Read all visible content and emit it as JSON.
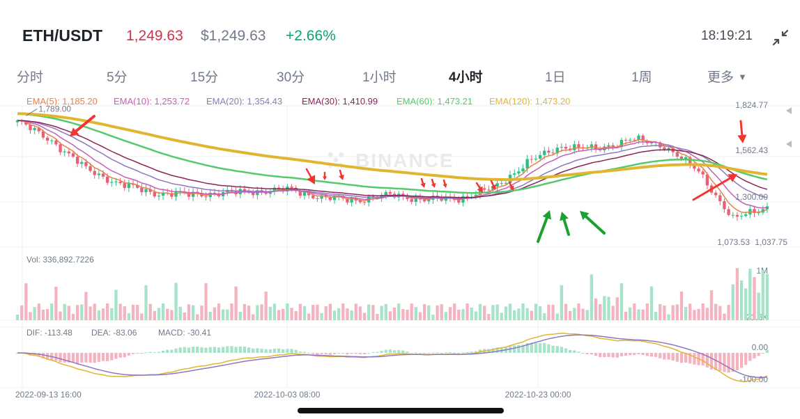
{
  "header": {
    "pair": "ETH/USDT",
    "last_price": "1,249.63",
    "usd_price": "$1,249.63",
    "change_pct": "+2.66%",
    "time": "18:19:21"
  },
  "tabs": [
    {
      "label": "分时",
      "active": false
    },
    {
      "label": "5分",
      "active": false
    },
    {
      "label": "15分",
      "active": false
    },
    {
      "label": "30分",
      "active": false
    },
    {
      "label": "1小时",
      "active": false
    },
    {
      "label": "4小时",
      "active": true
    },
    {
      "label": "1日",
      "active": false
    },
    {
      "label": "1周",
      "active": false
    },
    {
      "label": "更多",
      "active": false
    }
  ],
  "ema_legend": [
    {
      "label": "EMA(5): 1,185.20",
      "color": "#e8804a"
    },
    {
      "label": "EMA(10): 1,253.72",
      "color": "#c45fb4"
    },
    {
      "label": "EMA(20): 1,354.43",
      "color": "#8f77bf"
    },
    {
      "label": "EMA(30): 1,410.99",
      "color": "#8b2356"
    },
    {
      "label": "EMA(60): 1,473.21",
      "color": "#55c96b"
    },
    {
      "label": "EMA(120): 1,473.20",
      "color": "#e0b530"
    }
  ],
  "colors": {
    "up": "#2ebd85",
    "down": "#e95f77",
    "arrow_red": "#f0362f",
    "arrow_green": "#1aa12f"
  },
  "watermark": "BINANCE",
  "chart_data": {
    "type": "candlestick",
    "interval": "4小时",
    "price_axis_labels": [
      "1,824.77",
      "1,562.43",
      "1,300.00",
      "1,073.53",
      "1,037.75"
    ],
    "annotations": {
      "period_high": "1,789.00"
    },
    "x_tick_labels": [
      "2022-09-13 16:00",
      "2022-10-03 08:00",
      "2022-10-23 00:00"
    ],
    "price_series_approx": [
      {
        "x": "2022-09-13 16:00",
        "close": 1740
      },
      {
        "x": "2022-09-15",
        "close": 1630
      },
      {
        "x": "2022-09-17",
        "close": 1470
      },
      {
        "x": "2022-09-19",
        "close": 1380
      },
      {
        "x": "2022-09-21",
        "close": 1330
      },
      {
        "x": "2022-09-25",
        "close": 1320
      },
      {
        "x": "2022-09-29",
        "close": 1330
      },
      {
        "x": "2022-10-03 08:00",
        "close": 1340
      },
      {
        "x": "2022-10-06",
        "close": 1350
      },
      {
        "x": "2022-10-10",
        "close": 1300
      },
      {
        "x": "2022-10-13",
        "close": 1290
      },
      {
        "x": "2022-10-16",
        "close": 1320
      },
      {
        "x": "2022-10-20",
        "close": 1290
      },
      {
        "x": "2022-10-23 00:00",
        "close": 1300
      },
      {
        "x": "2022-10-25",
        "close": 1360
      },
      {
        "x": "2022-10-26",
        "close": 1510
      },
      {
        "x": "2022-10-29",
        "close": 1600
      },
      {
        "x": "2022-11-01",
        "close": 1580
      },
      {
        "x": "2022-11-04",
        "close": 1640
      },
      {
        "x": "2022-11-06",
        "close": 1600
      },
      {
        "x": "2022-11-08",
        "close": 1450
      },
      {
        "x": "2022-11-09",
        "close": 1180
      },
      {
        "x": "2022-11-09 16:00",
        "close": 1250
      }
    ],
    "ema": {
      "EMA(5)": 1185.2,
      "EMA(10)": 1253.72,
      "EMA(20)": 1354.43,
      "EMA(30)": 1410.99,
      "EMA(60)": 1473.21,
      "EMA(120)": 1473.2
    },
    "volume": {
      "label": "Vol: 336,892.7226",
      "axis_labels": [
        "1M",
        "21.6K"
      ]
    },
    "macd": {
      "dif_label": "DIF: -113.48",
      "dea_label": "DEA: -83.06",
      "macd_label": "MACD: -30.41",
      "axis_labels": [
        "0.00",
        "-100.00"
      ]
    }
  }
}
